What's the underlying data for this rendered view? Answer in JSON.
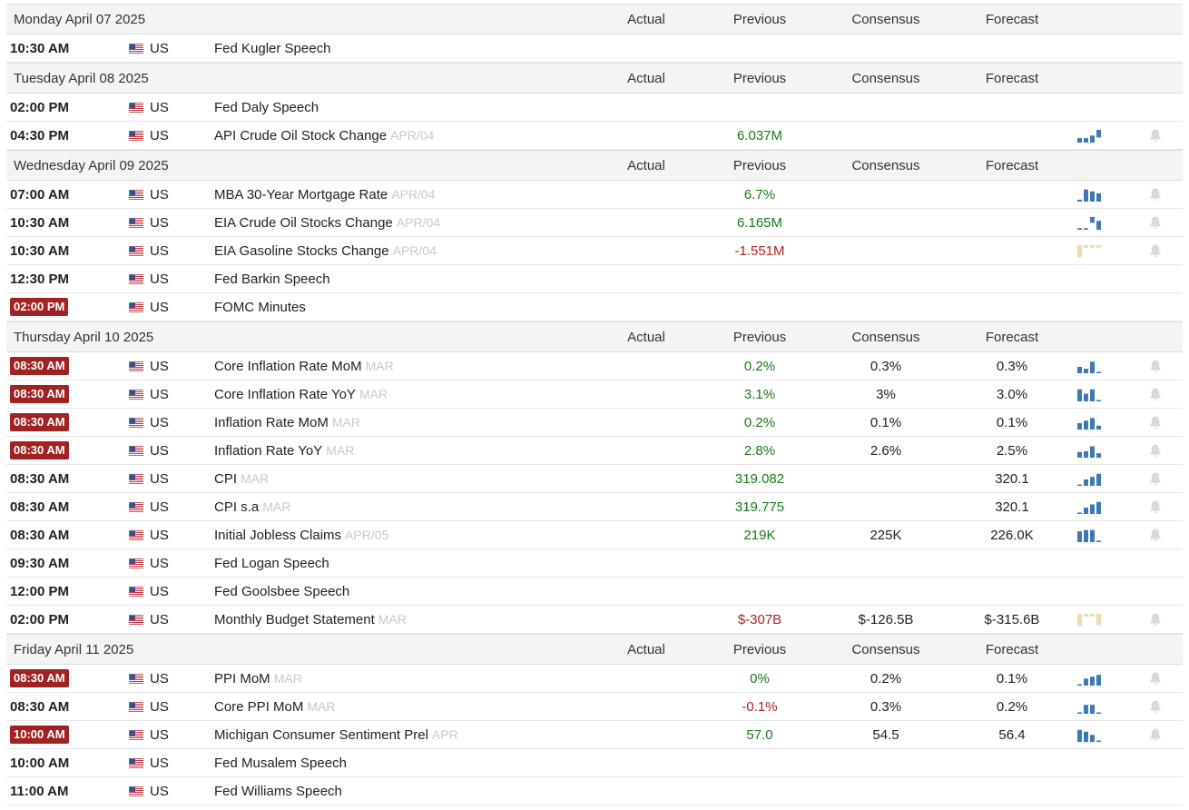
{
  "headers": {
    "actual": "Actual",
    "previous": "Previous",
    "consensus": "Consensus",
    "forecast": "Forecast"
  },
  "colors": {
    "positive": "#1a7a1a",
    "negative": "#b22222",
    "badge": "#a12222",
    "spark_blue": "#3d7ab8",
    "spark_tan": "#f2d8b0"
  },
  "days": [
    {
      "title": "Monday April 07 2025",
      "events": [
        {
          "time": "10:30 AM",
          "highlight": false,
          "country": "US",
          "event": "Fed Kugler Speech",
          "period": "",
          "actual": "",
          "previous": "",
          "previous_color": "",
          "consensus": "",
          "forecast": "",
          "spark": null
        }
      ]
    },
    {
      "title": "Tuesday April 08 2025",
      "events": [
        {
          "time": "02:00 PM",
          "highlight": false,
          "country": "US",
          "event": "Fed Daly Speech",
          "period": "",
          "actual": "",
          "previous": "",
          "previous_color": "",
          "consensus": "",
          "forecast": "",
          "spark": null
        },
        {
          "time": "04:30 PM",
          "highlight": false,
          "country": "US",
          "event": "API Crude Oil Stock Change",
          "period": "APR/04",
          "actual": "",
          "previous": "6.037M",
          "previous_color": "pos",
          "consensus": "",
          "forecast": "",
          "spark": {
            "color": "blue",
            "bars": [
              0.35,
              0.35,
              0.55,
              -0.6
            ]
          }
        }
      ]
    },
    {
      "title": "Wednesday April 09 2025",
      "events": [
        {
          "time": "07:00 AM",
          "highlight": false,
          "country": "US",
          "event": "MBA 30-Year Mortgage Rate",
          "period": "APR/04",
          "actual": "",
          "previous": "6.7%",
          "previous_color": "pos",
          "consensus": "",
          "forecast": "",
          "spark": {
            "color": "blue",
            "bars": [
              0.15,
              0.95,
              0.8,
              0.65
            ]
          }
        },
        {
          "time": "10:30 AM",
          "highlight": false,
          "country": "US",
          "event": "EIA Crude Oil Stocks Change",
          "period": "APR/04",
          "actual": "",
          "previous": "6.165M",
          "previous_color": "pos",
          "consensus": "",
          "forecast": "",
          "spark": {
            "color": "blue",
            "bars": [
              0.12,
              0.12,
              -0.45,
              0.7
            ]
          }
        },
        {
          "time": "10:30 AM",
          "highlight": false,
          "country": "US",
          "event": "EIA Gasoline Stocks Change",
          "period": "APR/04",
          "actual": "",
          "previous": "-1.551M",
          "previous_color": "neg",
          "consensus": "",
          "forecast": "",
          "spark": {
            "color": "tan",
            "bars": [
              -0.95,
              -0.2,
              -0.2,
              -0.2
            ]
          }
        },
        {
          "time": "12:30 PM",
          "highlight": false,
          "country": "US",
          "event": "Fed Barkin Speech",
          "period": "",
          "actual": "",
          "previous": "",
          "previous_color": "",
          "consensus": "",
          "forecast": "",
          "spark": null
        },
        {
          "time": "02:00 PM",
          "highlight": true,
          "country": "US",
          "event": "FOMC Minutes",
          "period": "",
          "actual": "",
          "previous": "",
          "previous_color": "",
          "consensus": "",
          "forecast": "",
          "spark": null
        }
      ]
    },
    {
      "title": "Thursday April 10 2025",
      "events": [
        {
          "time": "08:30 AM",
          "highlight": true,
          "country": "US",
          "event": "Core Inflation Rate MoM",
          "period": "MAR",
          "actual": "",
          "previous": "0.2%",
          "previous_color": "pos",
          "consensus": "0.3%",
          "forecast": "0.3%",
          "spark": {
            "color": "blue",
            "bars": [
              0.5,
              0.35,
              0.9,
              0.1
            ]
          }
        },
        {
          "time": "08:30 AM",
          "highlight": true,
          "country": "US",
          "event": "Core Inflation Rate YoY",
          "period": "MAR",
          "actual": "",
          "previous": "3.1%",
          "previous_color": "pos",
          "consensus": "3%",
          "forecast": "3.0%",
          "spark": {
            "color": "blue",
            "bars": [
              0.95,
              0.6,
              0.95,
              0.1
            ]
          }
        },
        {
          "time": "08:30 AM",
          "highlight": true,
          "country": "US",
          "event": "Inflation Rate MoM",
          "period": "MAR",
          "actual": "",
          "previous": "0.2%",
          "previous_color": "pos",
          "consensus": "0.1%",
          "forecast": "0.1%",
          "spark": {
            "color": "blue",
            "bars": [
              0.5,
              0.7,
              0.9,
              0.3
            ]
          }
        },
        {
          "time": "08:30 AM",
          "highlight": true,
          "country": "US",
          "event": "Inflation Rate YoY",
          "period": "MAR",
          "actual": "",
          "previous": "2.8%",
          "previous_color": "pos",
          "consensus": "2.6%",
          "forecast": "2.5%",
          "spark": {
            "color": "blue",
            "bars": [
              0.45,
              0.5,
              0.9,
              0.35
            ]
          }
        },
        {
          "time": "08:30 AM",
          "highlight": false,
          "country": "US",
          "event": "CPI",
          "period": "MAR",
          "actual": "",
          "previous": "319.082",
          "previous_color": "pos",
          "consensus": "",
          "forecast": "320.1",
          "spark": {
            "color": "blue",
            "bars": [
              0.1,
              0.5,
              0.7,
              0.95
            ]
          }
        },
        {
          "time": "08:30 AM",
          "highlight": false,
          "country": "US",
          "event": "CPI s.a",
          "period": "MAR",
          "actual": "",
          "previous": "319.775",
          "previous_color": "pos",
          "consensus": "",
          "forecast": "320.1",
          "spark": {
            "color": "blue",
            "bars": [
              0.1,
              0.5,
              0.75,
              0.95
            ]
          }
        },
        {
          "time": "08:30 AM",
          "highlight": false,
          "country": "US",
          "event": "Initial Jobless Claims",
          "period": "APR/05",
          "actual": "",
          "previous": "219K",
          "previous_color": "pos",
          "consensus": "225K",
          "forecast": "226.0K",
          "spark": {
            "color": "blue",
            "bars": [
              0.85,
              0.95,
              0.95,
              0.1
            ]
          }
        },
        {
          "time": "09:30 AM",
          "highlight": false,
          "country": "US",
          "event": "Fed Logan Speech",
          "period": "",
          "actual": "",
          "previous": "",
          "previous_color": "",
          "consensus": "",
          "forecast": "",
          "spark": null
        },
        {
          "time": "12:00 PM",
          "highlight": false,
          "country": "US",
          "event": "Fed Goolsbee Speech",
          "period": "",
          "actual": "",
          "previous": "",
          "previous_color": "",
          "consensus": "",
          "forecast": "",
          "spark": null
        },
        {
          "time": "02:00 PM",
          "highlight": false,
          "country": "US",
          "event": "Monthly Budget Statement",
          "period": "MAR",
          "actual": "",
          "previous": "$-307B",
          "previous_color": "neg",
          "consensus": "$-126.5B",
          "forecast": "$-315.6B",
          "spark": {
            "color": "tan",
            "bars": [
              -0.95,
              -0.2,
              -0.2,
              -0.9
            ]
          }
        }
      ]
    },
    {
      "title": "Friday April 11 2025",
      "events": [
        {
          "time": "08:30 AM",
          "highlight": true,
          "country": "US",
          "event": "PPI MoM",
          "period": "MAR",
          "actual": "",
          "previous": "0%",
          "previous_color": "pos",
          "consensus": "0.2%",
          "forecast": "0.1%",
          "spark": {
            "color": "blue",
            "bars": [
              0.1,
              0.55,
              0.7,
              0.85
            ]
          }
        },
        {
          "time": "08:30 AM",
          "highlight": false,
          "country": "US",
          "event": "Core PPI MoM",
          "period": "MAR",
          "actual": "",
          "previous": "-0.1%",
          "previous_color": "neg",
          "consensus": "0.3%",
          "forecast": "0.2%",
          "spark": {
            "color": "blue",
            "bars": [
              0,
              0.7,
              0.7,
              0.1
            ]
          }
        },
        {
          "time": "10:00 AM",
          "highlight": true,
          "country": "US",
          "event": "Michigan Consumer Sentiment Prel",
          "period": "APR",
          "actual": "",
          "previous": "57.0",
          "previous_color": "pos",
          "consensus": "54.5",
          "forecast": "56.4",
          "spark": {
            "color": "blue",
            "bars": [
              0.95,
              0.8,
              0.55,
              0.1
            ]
          }
        },
        {
          "time": "10:00 AM",
          "highlight": false,
          "country": "US",
          "event": "Fed Musalem Speech",
          "period": "",
          "actual": "",
          "previous": "",
          "previous_color": "",
          "consensus": "",
          "forecast": "",
          "spark": null
        },
        {
          "time": "11:00 AM",
          "highlight": false,
          "country": "US",
          "event": "Fed Williams Speech",
          "period": "",
          "actual": "",
          "previous": "",
          "previous_color": "",
          "consensus": "",
          "forecast": "",
          "spark": null
        }
      ]
    }
  ]
}
